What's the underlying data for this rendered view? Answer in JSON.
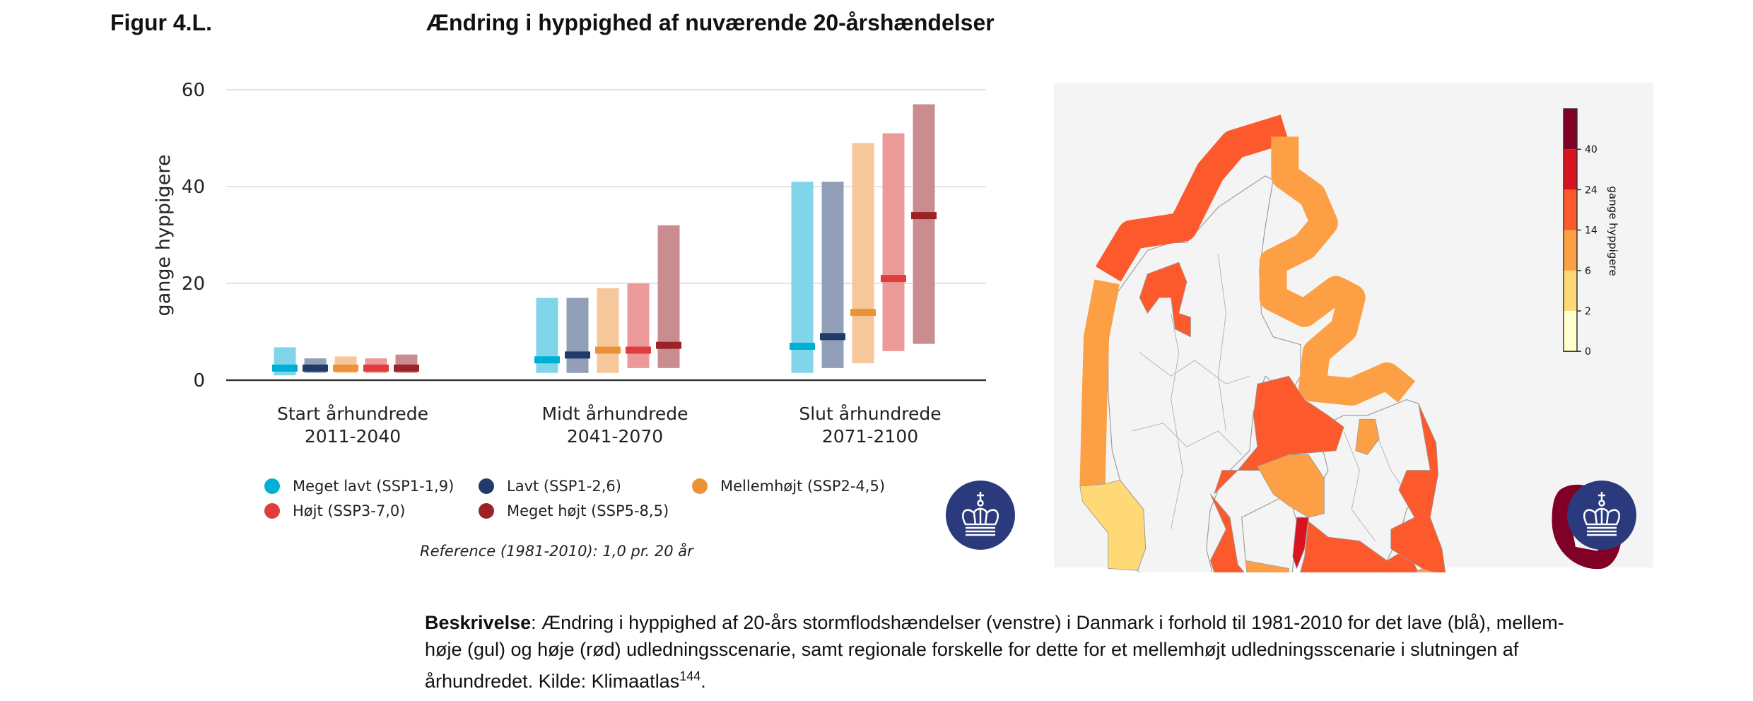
{
  "header": {
    "figure_label": "Figur 4.L.",
    "title": "Ændring i hyppighed af nuværende 20-årshændelser"
  },
  "chart_data": {
    "type": "bar",
    "subtype": "range-bar with median marker",
    "title": "Ændring i hyppighed af nuværende 20-årshændelser",
    "ylabel": "gange hyppigere",
    "xlabel": "",
    "ylim": [
      0,
      60
    ],
    "yticks": [
      "0",
      "20",
      "40",
      "60"
    ],
    "grid": true,
    "categories": [
      {
        "name": "Start århundrede",
        "period": "2011-2040"
      },
      {
        "name": "Midt århundrede",
        "period": "2041-2070"
      },
      {
        "name": "Slut århundrede",
        "period": "2071-2100"
      }
    ],
    "series": [
      {
        "name": "Meget lavt (SSP1-1,9)",
        "color": "#00b0d4",
        "light": "#80d6e8",
        "low": [
          1,
          1.5,
          1.5
        ],
        "high": [
          6.8,
          17,
          41
        ],
        "median": [
          2.5,
          4.2,
          7
        ]
      },
      {
        "name": "Lavt (SSP1-2,6)",
        "color": "#1f3a6b",
        "light": "#91a0b8",
        "low": [
          1.5,
          1.5,
          2.5
        ],
        "high": [
          4.5,
          17,
          41
        ],
        "median": [
          2.5,
          5.2,
          9
        ]
      },
      {
        "name": "Mellemhøjt (SSP2-4,5)",
        "color": "#ec9236",
        "light": "#f6c79b",
        "low": [
          1.5,
          1.5,
          3.5
        ],
        "high": [
          4.9,
          19,
          49
        ],
        "median": [
          2.5,
          6.2,
          14
        ]
      },
      {
        "name": "Højt (SSP3-7,0)",
        "color": "#e03c3c",
        "light": "#ec999a",
        "low": [
          1.5,
          2.5,
          6
        ],
        "high": [
          4.5,
          20,
          51
        ],
        "median": [
          2.5,
          6.2,
          21
        ]
      },
      {
        "name": "Meget højt (SSP5-8,5)",
        "color": "#9b2226",
        "light": "#c98d90",
        "low": [
          1.5,
          2.5,
          7.5
        ],
        "high": [
          5.3,
          32,
          57
        ],
        "median": [
          2.5,
          7.2,
          34
        ]
      }
    ],
    "legend_position": "bottom",
    "annotation": "Reference (1981-2010): 1,0 pr. 20 år"
  },
  "map": {
    "colorbar": {
      "label": "gange hyppigere",
      "ticks": [
        "0",
        "2",
        "6",
        "14",
        "24",
        "40"
      ],
      "colors": [
        "#ffffcc",
        "#fed976",
        "#fd9f44",
        "#fc5a2d",
        "#d7141f",
        "#800026"
      ]
    },
    "colors": {
      "land": "#f4f4f4",
      "border": "#999999"
    }
  },
  "caption": {
    "label": "Beskrivelse",
    "line1": ": Ændring i hyppighed af 20-års stormflodshændelser (venstre) i Danmark i forhold til 1981-2010 for det lave (blå), mellem-",
    "line2": "høje (gul) og høje (rød) udledningsscenarie, samt regionale forskelle for dette for et mellemhøjt udledningsscenarie i slutningen af",
    "line3": "århundredet. Kilde: Klimaatlas",
    "sup": "144",
    "end": "."
  }
}
